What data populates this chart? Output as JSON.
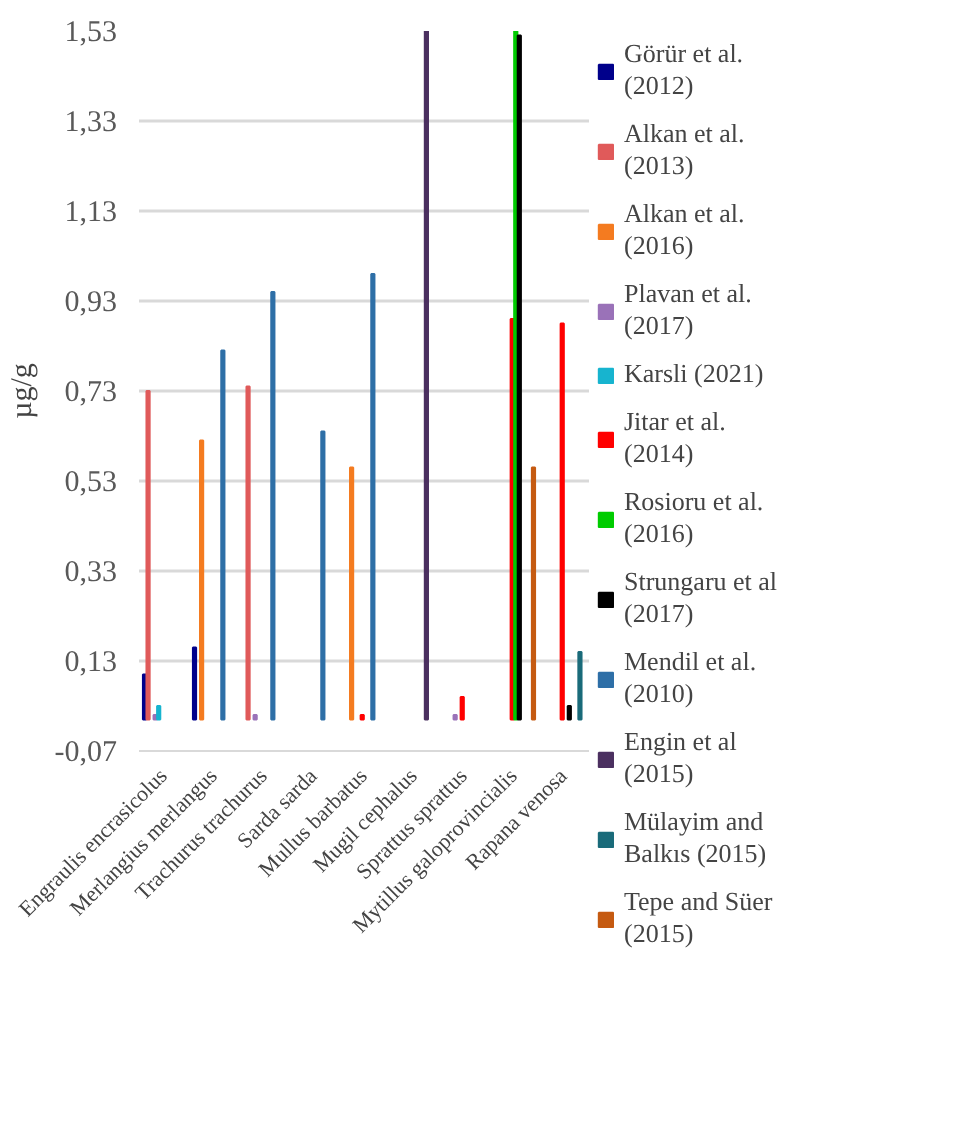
{
  "chart_data": {
    "type": "bar",
    "ylabel": "µg/g",
    "categories": [
      "Engraulis encrasicolus",
      "Merlangius merlangus",
      "Trachurus trachurus",
      "Sarda sarda",
      "Mullus barbatus",
      "Mugil cephalus",
      "Sprattus sprattus",
      "Mytillus galoprovincialis",
      "Rapana venosa"
    ],
    "series": [
      {
        "name": "Görür et al. (2012)",
        "color": "#00008b",
        "values": [
          0.1,
          0.16,
          null,
          null,
          null,
          null,
          null,
          null,
          null
        ]
      },
      {
        "name": "Alkan et al. (2013)",
        "color": "#e05a5a",
        "values": [
          0.73,
          null,
          0.74,
          null,
          null,
          null,
          null,
          null,
          null
        ]
      },
      {
        "name": "Alkan et al. (2016)",
        "color": "#f47b20",
        "values": [
          null,
          0.62,
          null,
          null,
          0.56,
          null,
          null,
          null,
          null
        ]
      },
      {
        "name": "Plavan et al. (2017)",
        "color": "#9a72b8",
        "values": [
          0.01,
          null,
          0.01,
          null,
          null,
          null,
          0.01,
          null,
          null
        ]
      },
      {
        "name": "Karsli (2021)",
        "color": "#17b4cf",
        "values": [
          0.03,
          null,
          null,
          null,
          null,
          null,
          null,
          null,
          null
        ]
      },
      {
        "name": "Jitar et al. (2014)",
        "color": "#ff0000",
        "values": [
          null,
          null,
          null,
          null,
          0.01,
          null,
          0.05,
          0.89,
          0.88
        ]
      },
      {
        "name": "Rosioru et al. (2016)",
        "color": "#00cc00",
        "values": [
          null,
          null,
          null,
          null,
          null,
          null,
          null,
          1.53,
          null
        ]
      },
      {
        "name": "Strungaru et al (2017)",
        "color": "#000000",
        "values": [
          null,
          null,
          null,
          null,
          null,
          null,
          null,
          1.52,
          0.03
        ]
      },
      {
        "name": "Mendil et al. (2010)",
        "color": "#2e6fa7",
        "values": [
          null,
          0.82,
          0.95,
          0.64,
          0.99,
          null,
          null,
          null,
          null
        ]
      },
      {
        "name": "Engin et al (2015)",
        "color": "#4b3060",
        "values": [
          null,
          null,
          null,
          null,
          null,
          1.53,
          null,
          null,
          null
        ]
      },
      {
        "name": "Mülayim and Balkıs (2015)",
        "color": "#1a6b7a",
        "values": [
          null,
          null,
          null,
          null,
          null,
          null,
          null,
          null,
          0.15
        ]
      },
      {
        "name": "Tepe and Süer (2015)",
        "color": "#c55a11",
        "values": [
          null,
          null,
          null,
          null,
          null,
          null,
          null,
          0.56,
          null
        ]
      }
    ],
    "ylim": [
      -0.07,
      1.53
    ],
    "yticks": [
      {
        "value": -0.07,
        "label": "-0,07"
      },
      {
        "value": 0.13,
        "label": "0,13"
      },
      {
        "value": 0.33,
        "label": "0,33"
      },
      {
        "value": 0.53,
        "label": "0,53"
      },
      {
        "value": 0.73,
        "label": "0,73"
      },
      {
        "value": 0.93,
        "label": "0,93"
      },
      {
        "value": 1.13,
        "label": "1,13"
      },
      {
        "value": 1.33,
        "label": "1,33"
      },
      {
        "value": 1.53,
        "label": "1,53"
      }
    ],
    "grid": "y",
    "legend": "right"
  }
}
